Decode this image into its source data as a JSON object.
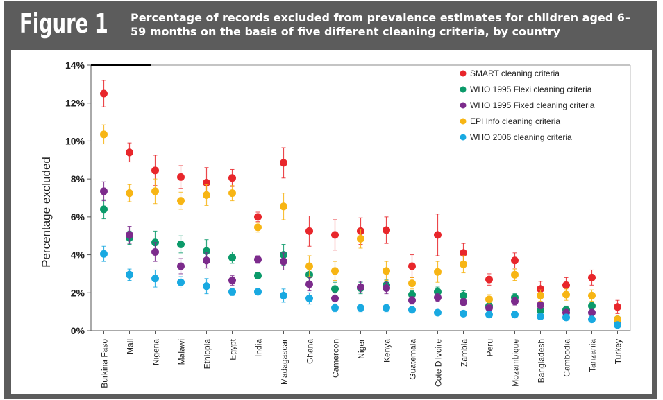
{
  "figure": {
    "label": "Figure 1",
    "title": "Percentage of records excluded from prevalence estimates for children aged 6–59 months on the basis of five different cleaning criteria, by country"
  },
  "chart_data": {
    "type": "scatter",
    "ylabel": "Percentage excluded",
    "xlabel": "",
    "ylim": [
      0,
      14
    ],
    "yticks": [
      "0%",
      "2%",
      "4%",
      "6%",
      "8%",
      "10%",
      "12%",
      "14%"
    ],
    "grid": false,
    "error_bars": true,
    "legend_position": "top-right",
    "categories": [
      "Burkina Faso",
      "Mali",
      "Nigeria",
      "Malawi",
      "Ethiopia",
      "Egypt",
      "India",
      "Madagascar",
      "Ghana",
      "Cameroon",
      "Niger",
      "Kenya",
      "Guatemala",
      "Cote D'Ivoire",
      "Zambia",
      "Peru",
      "Mozambique",
      "Bangladesh",
      "Cambodia",
      "Tanzania",
      "Turkey"
    ],
    "series": [
      {
        "name": "SMART cleaning criteria",
        "color": "#e8262b",
        "values": [
          12.5,
          9.4,
          8.45,
          8.1,
          7.8,
          8.05,
          6.0,
          8.85,
          5.25,
          5.05,
          5.25,
          5.3,
          3.4,
          5.05,
          4.1,
          2.7,
          3.7,
          2.2,
          2.4,
          2.8,
          1.25
        ],
        "err": [
          0.7,
          0.5,
          0.8,
          0.6,
          0.8,
          0.45,
          0.25,
          0.8,
          0.8,
          0.8,
          0.7,
          0.7,
          0.6,
          1.1,
          0.5,
          0.3,
          0.4,
          0.4,
          0.4,
          0.4,
          0.35
        ]
      },
      {
        "name": "WHO 1995 Flexi cleaning criteria",
        "color": "#0b9a6a",
        "values": [
          6.4,
          4.9,
          4.65,
          4.55,
          4.2,
          3.85,
          2.9,
          4.0,
          2.95,
          2.2,
          2.25,
          2.4,
          1.9,
          2.05,
          1.85,
          1.3,
          1.75,
          1.05,
          1.1,
          1.3,
          0.6
        ],
        "err": [
          0.5,
          0.35,
          0.6,
          0.45,
          0.6,
          0.3,
          0.15,
          0.55,
          0.4,
          0.35,
          0.3,
          0.3,
          0.2,
          0.25,
          0.25,
          0.2,
          0.2,
          0.2,
          0.2,
          0.2,
          0.1
        ]
      },
      {
        "name": "WHO 1995 Fixed cleaning criteria",
        "color": "#7c2b8c",
        "values": [
          7.35,
          5.05,
          4.15,
          3.4,
          3.7,
          2.65,
          3.75,
          3.65,
          2.45,
          1.7,
          2.3,
          2.25,
          1.6,
          1.75,
          1.5,
          1.2,
          1.55,
          1.35,
          0.95,
          0.95,
          0.5
        ],
        "err": [
          0.5,
          0.45,
          0.5,
          0.4,
          0.4,
          0.25,
          0.2,
          0.45,
          0.35,
          0.3,
          0.3,
          0.3,
          0.2,
          0.2,
          0.2,
          0.2,
          0.2,
          0.2,
          0.15,
          0.15,
          0.1
        ]
      },
      {
        "name": "EPI Info cleaning criteria",
        "color": "#f7b514",
        "values": [
          10.35,
          7.25,
          7.35,
          6.85,
          7.15,
          7.25,
          5.45,
          6.55,
          3.4,
          3.15,
          4.85,
          3.15,
          2.5,
          3.1,
          3.5,
          1.65,
          2.95,
          1.85,
          1.9,
          1.85,
          0.6
        ],
        "err": [
          0.5,
          0.45,
          0.65,
          0.45,
          0.55,
          0.4,
          0.25,
          0.7,
          0.55,
          0.5,
          0.5,
          0.5,
          0.3,
          0.55,
          0.45,
          0.25,
          0.3,
          0.3,
          0.3,
          0.3,
          0.15
        ]
      },
      {
        "name": "WHO 2006 cleaning criteria",
        "color": "#19a9e1",
        "values": [
          4.05,
          2.95,
          2.75,
          2.55,
          2.35,
          2.05,
          2.05,
          1.85,
          1.7,
          1.2,
          1.2,
          1.2,
          1.1,
          0.95,
          0.9,
          0.85,
          0.85,
          0.75,
          0.7,
          0.6,
          0.3
        ],
        "err": [
          0.4,
          0.3,
          0.45,
          0.3,
          0.4,
          0.2,
          0.1,
          0.35,
          0.3,
          0.2,
          0.2,
          0.2,
          0.15,
          0.15,
          0.15,
          0.1,
          0.1,
          0.1,
          0.1,
          0.1,
          0.05
        ]
      }
    ]
  }
}
